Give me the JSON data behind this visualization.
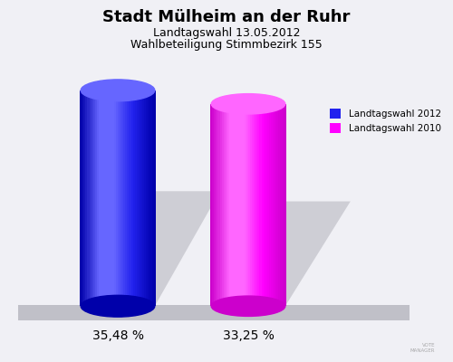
{
  "title_line1": "Stadt Mülheim an der Ruhr",
  "title_line2": "Landtagswahl 13.05.2012",
  "title_line3": "Wahlbeteiligung Stimmbezirk 155",
  "values": [
    35.48,
    33.25
  ],
  "bar_colors": [
    "#2222ee",
    "#ff00ff"
  ],
  "bar_colors_highlight": [
    "#6666ff",
    "#ff66ff"
  ],
  "bar_colors_dark": [
    "#0000aa",
    "#cc00cc"
  ],
  "labels": [
    "35,48 %",
    "33,25 %"
  ],
  "legend_labels": [
    "Landtagswahl 2012",
    "Landtagswahl 2010"
  ],
  "background_color": "#f0f0f5",
  "platform_color": "#c0c0c8"
}
